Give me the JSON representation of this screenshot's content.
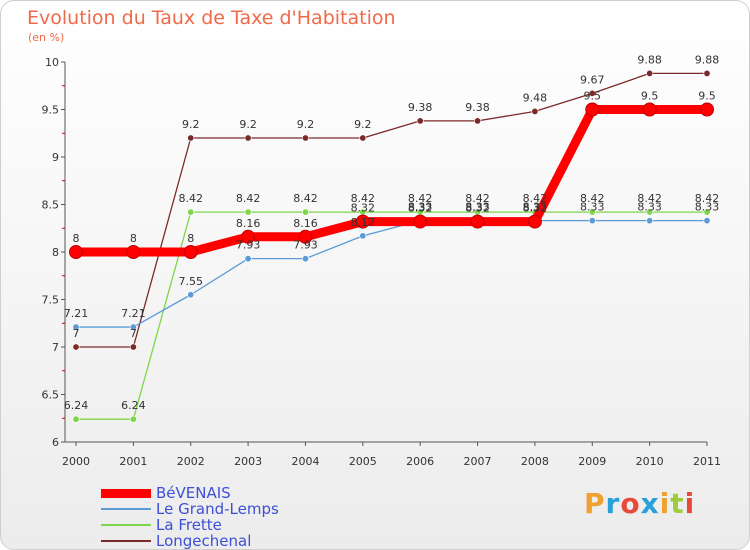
{
  "chart_data": {
    "type": "line",
    "title": "Evolution du Taux de Taxe d'Habitation",
    "ylabel": "(en %)",
    "xlabel": "",
    "categories": [
      "2000",
      "2001",
      "2002",
      "2003",
      "2004",
      "2005",
      "2006",
      "2007",
      "2008",
      "2009",
      "2010",
      "2011"
    ],
    "y_ticks": [
      "6",
      "6.5",
      "7",
      "7.5",
      "8",
      "8.5",
      "9",
      "9.5",
      "10"
    ],
    "ylim": [
      6,
      10
    ],
    "grid": false,
    "legend_position": "bottom-left",
    "series": [
      {
        "name": "BéVENAIS",
        "color": "#ff0000",
        "values": [
          8,
          8,
          8,
          8.16,
          8.16,
          8.32,
          8.32,
          8.32,
          8.32,
          9.5,
          9.5,
          9.5
        ],
        "labels": [
          "8",
          "8",
          "8",
          "8.16",
          "8.16",
          "8.32",
          "8.32",
          "8.32",
          "8.32",
          "9.5",
          "9.5",
          "9.5"
        ]
      },
      {
        "name": "Le Grand-Lemps",
        "color": "#5b9bd5",
        "values": [
          7.21,
          7.21,
          7.55,
          7.93,
          7.93,
          8.17,
          8.33,
          8.33,
          8.33,
          8.33,
          8.33,
          8.33
        ],
        "labels": [
          "7.21",
          "7.21",
          "7.55",
          "7.93",
          "7.93",
          "8.17",
          "8.33",
          "8.33",
          "8.33",
          "8.33",
          "8.33",
          "8.33"
        ]
      },
      {
        "name": "La Frette",
        "color": "#7fd64a",
        "values": [
          6.24,
          6.24,
          8.42,
          8.42,
          8.42,
          8.42,
          8.42,
          8.42,
          8.42,
          8.42,
          8.42,
          8.42
        ],
        "labels": [
          "6.24",
          "6.24",
          "8.42",
          "8.42",
          "8.42",
          "8.42",
          "8.42",
          "8.42",
          "8.42",
          "8.42",
          "8.42",
          "8.42"
        ]
      },
      {
        "name": "Longechenal",
        "color": "#7a2a2a",
        "values": [
          7,
          7,
          9.2,
          9.2,
          9.2,
          9.2,
          9.38,
          9.38,
          9.48,
          9.67,
          9.88,
          9.88
        ],
        "labels": [
          "7",
          "7",
          "9.2",
          "9.2",
          "9.2",
          "9.2",
          "9.38",
          "9.38",
          "9.48",
          "9.67",
          "9.88",
          "9.88"
        ]
      }
    ]
  },
  "brand": {
    "text": "Proxiti",
    "letters": [
      {
        "ch": "P",
        "color": "#f0a030"
      },
      {
        "ch": "r",
        "color": "#2aa0d8"
      },
      {
        "ch": "o",
        "color": "#e84a3a"
      },
      {
        "ch": "x",
        "color": "#2aa0d8"
      },
      {
        "ch": "i",
        "color": "#f0a030"
      },
      {
        "ch": "t",
        "color": "#9ccc3a"
      },
      {
        "ch": "i",
        "color": "#e84a3a"
      }
    ]
  }
}
